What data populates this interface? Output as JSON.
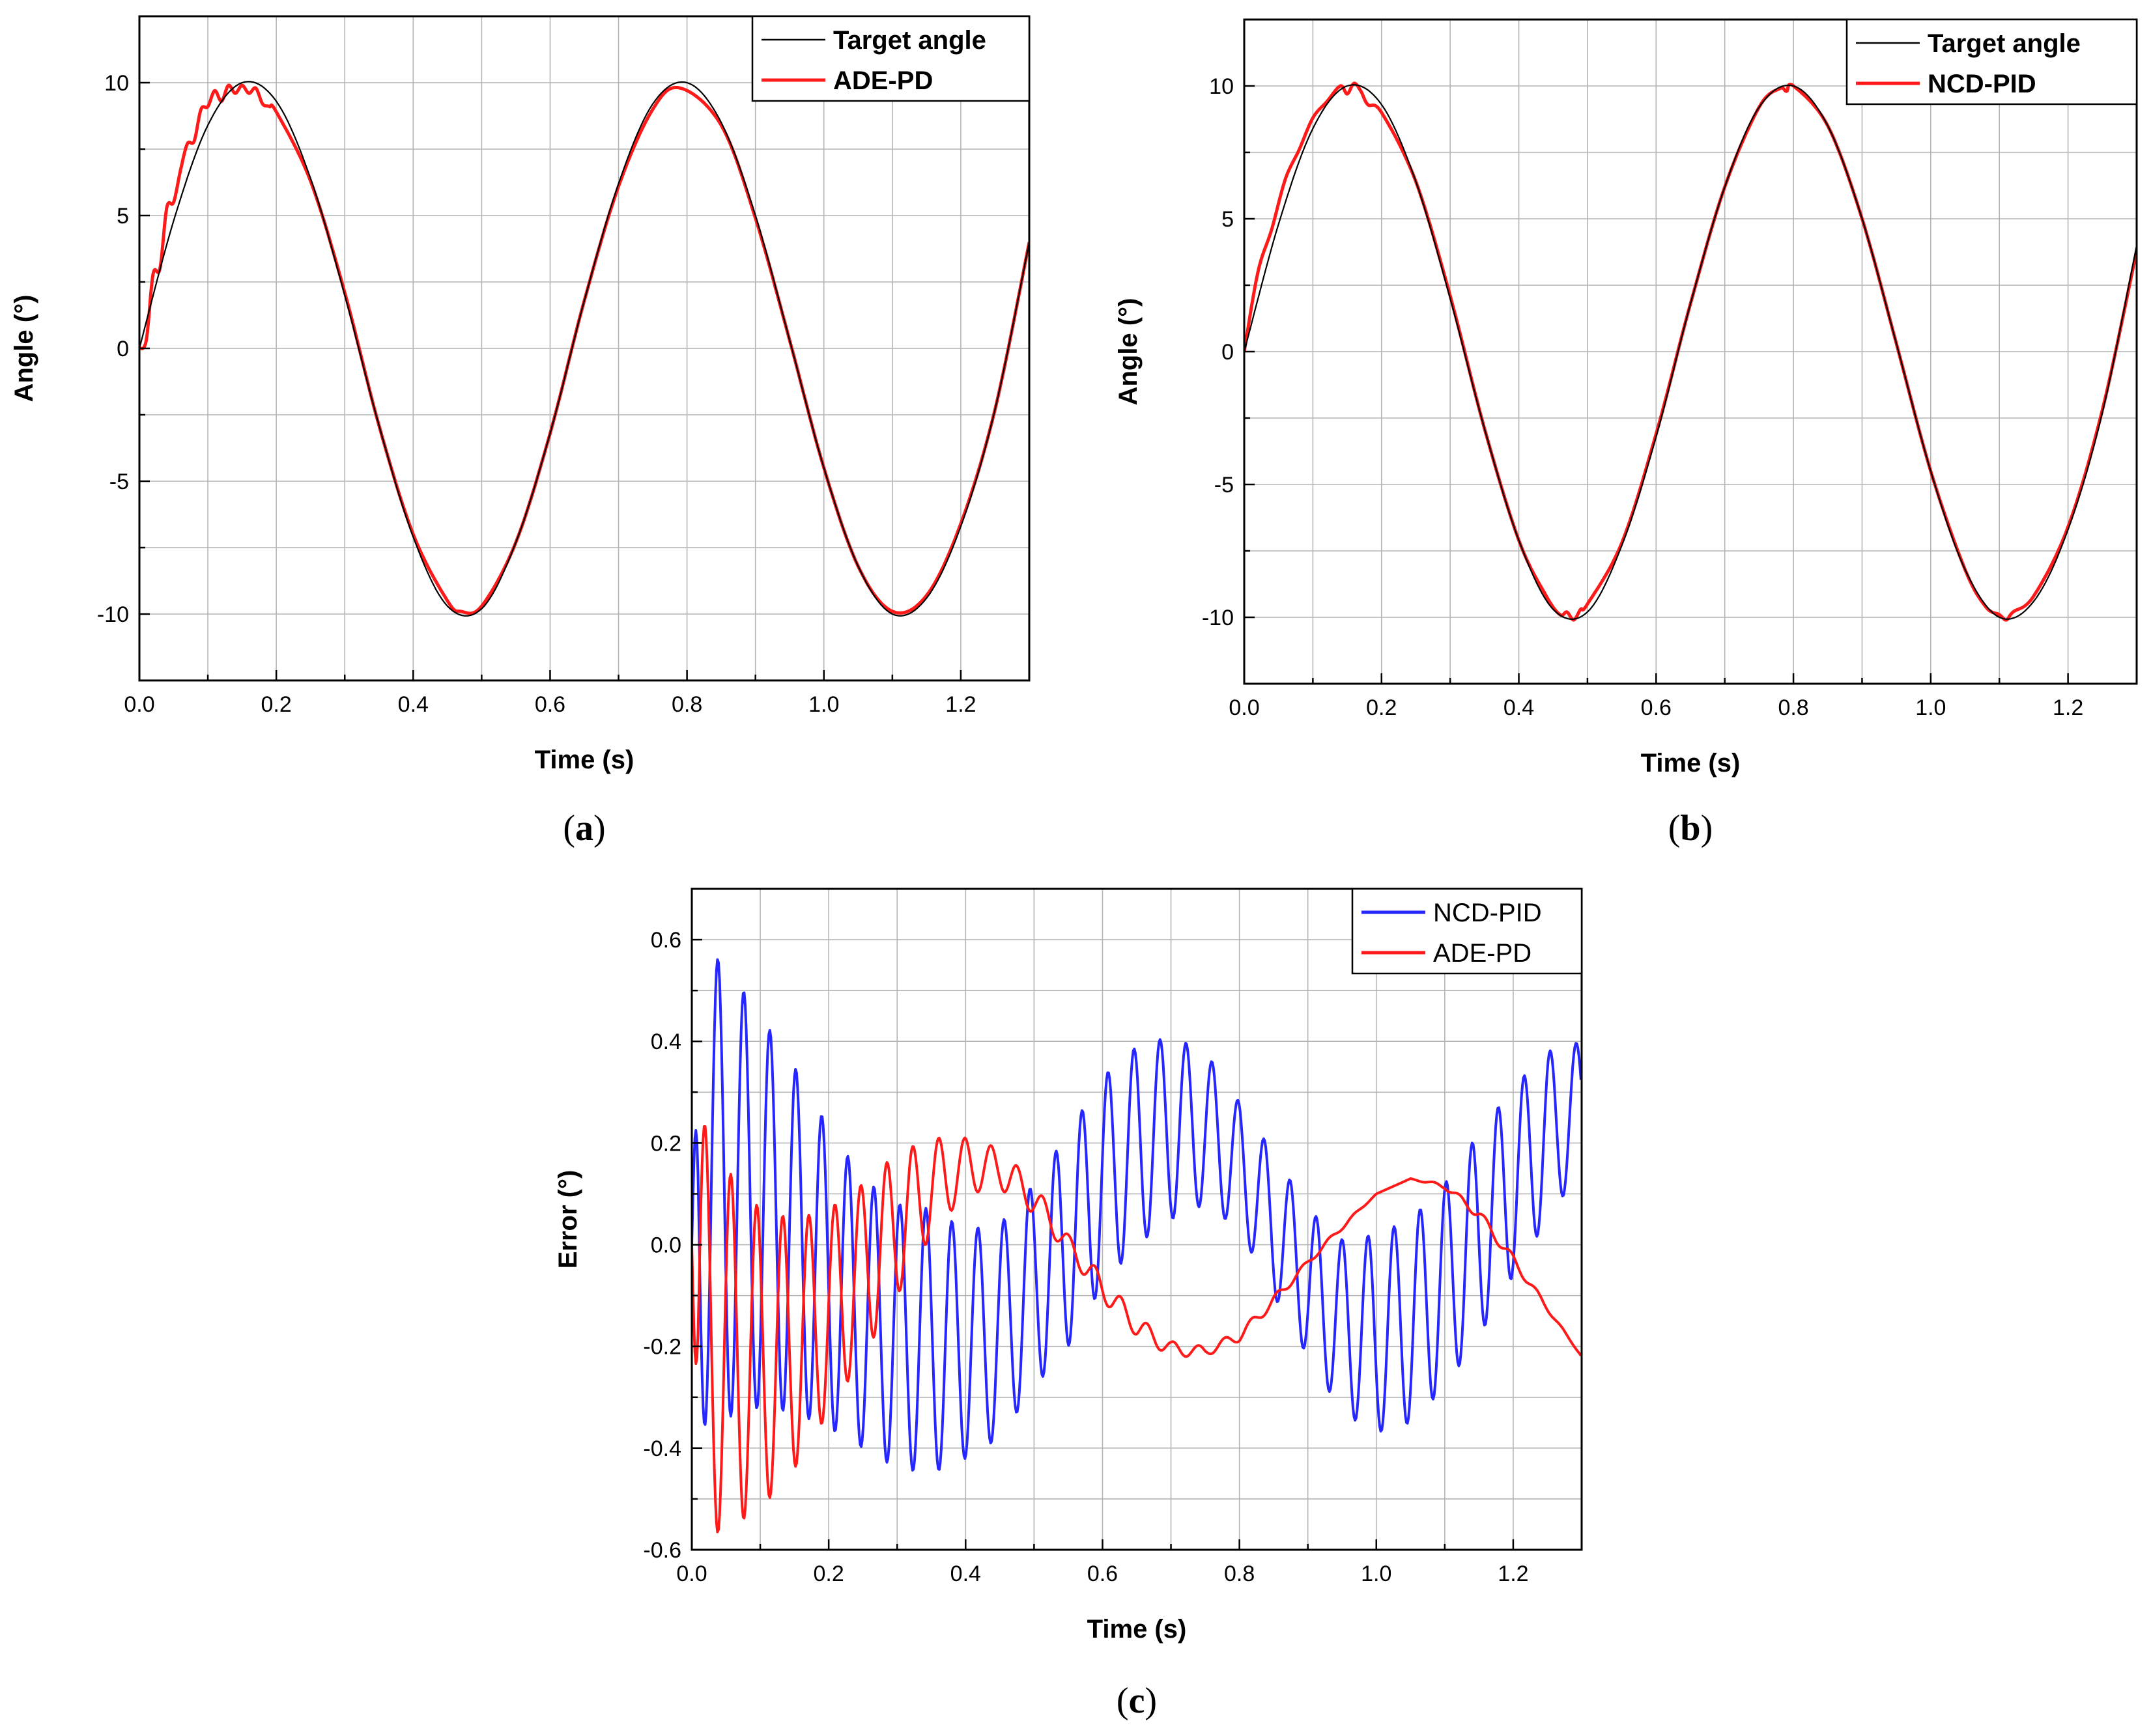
{
  "chart_data": [
    {
      "type": "line",
      "panel_label": "a",
      "xlabel": "Time (s)",
      "ylabel": "Angle (°)",
      "xlim": [
        0.0,
        1.3
      ],
      "ylim": [
        -12.5,
        12.5
      ],
      "xticks": [
        "0.0",
        "0.2",
        "0.4",
        "0.6",
        "0.8",
        "1.0",
        "1.2"
      ],
      "yticks": [
        "-10",
        "-5",
        "0",
        "5",
        "10"
      ],
      "grid": true,
      "legend_position": "top-right",
      "series": [
        {
          "name": "Target angle",
          "color": "#000000",
          "x": [
            0.0,
            0.05,
            0.1,
            0.15,
            0.2,
            0.25,
            0.3,
            0.35,
            0.4,
            0.45,
            0.5,
            0.55,
            0.6,
            0.65,
            0.7,
            0.75,
            0.8,
            0.85,
            0.9,
            0.95,
            1.0,
            1.05,
            1.1,
            1.15,
            1.2,
            1.25,
            1.3
          ],
          "values": [
            0.0,
            4.8,
            8.4,
            10.0,
            9.3,
            6.4,
            2.0,
            -2.9,
            -7.1,
            -9.7,
            -9.8,
            -7.3,
            -3.2,
            1.8,
            6.2,
            9.2,
            10.0,
            8.5,
            5.0,
            0.3,
            -4.5,
            -8.2,
            -10.0,
            -9.4,
            -6.7,
            -2.3,
            4.0
          ]
        },
        {
          "name": "ADE-PD",
          "color": "#ff1a1a",
          "x": [
            0.0,
            0.01,
            0.02,
            0.03,
            0.04,
            0.05,
            0.06,
            0.07,
            0.08,
            0.09,
            0.1,
            0.11,
            0.12,
            0.13,
            0.14,
            0.15,
            0.16,
            0.17,
            0.18,
            0.19,
            0.2,
            0.25,
            0.3,
            0.35,
            0.4,
            0.45,
            0.47,
            0.5,
            0.55,
            0.6,
            0.65,
            0.7,
            0.75,
            0.79,
            0.85,
            0.9,
            0.95,
            1.0,
            1.05,
            1.1,
            1.15,
            1.2,
            1.25,
            1.3
          ],
          "values": [
            0.0,
            0.3,
            2.8,
            3.0,
            5.3,
            5.5,
            6.7,
            7.7,
            7.8,
            9.0,
            9.1,
            9.7,
            9.3,
            9.9,
            9.6,
            9.9,
            9.6,
            9.8,
            9.2,
            9.1,
            8.9,
            6.3,
            2.1,
            -2.9,
            -7.0,
            -9.5,
            -9.9,
            -9.7,
            -7.3,
            -3.2,
            1.8,
            6.1,
            9.0,
            9.8,
            8.4,
            4.9,
            0.3,
            -4.5,
            -8.2,
            -9.9,
            -9.3,
            -6.6,
            -2.3,
            4.0
          ]
        }
      ]
    },
    {
      "type": "line",
      "panel_label": "b",
      "xlabel": "Time (s)",
      "ylabel": "Angle (°)",
      "xlim": [
        0.0,
        1.3
      ],
      "ylim": [
        -12.5,
        12.5
      ],
      "xticks": [
        "0.0",
        "0.2",
        "0.4",
        "0.6",
        "0.8",
        "1.0",
        "1.2"
      ],
      "yticks": [
        "-10",
        "-5",
        "0",
        "5",
        "10"
      ],
      "grid": true,
      "legend_position": "top-right",
      "series": [
        {
          "name": "Target angle",
          "color": "#000000",
          "x": [
            0.0,
            0.05,
            0.1,
            0.15,
            0.2,
            0.25,
            0.3,
            0.35,
            0.4,
            0.45,
            0.5,
            0.55,
            0.6,
            0.65,
            0.7,
            0.75,
            0.8,
            0.85,
            0.9,
            0.95,
            1.0,
            1.05,
            1.1,
            1.15,
            1.2,
            1.25,
            1.3
          ],
          "values": [
            0.0,
            4.8,
            8.4,
            10.0,
            9.3,
            6.4,
            2.0,
            -2.9,
            -7.1,
            -9.7,
            -9.8,
            -7.3,
            -3.2,
            1.8,
            6.2,
            9.2,
            10.0,
            8.5,
            5.0,
            0.3,
            -4.5,
            -8.2,
            -10.0,
            -9.4,
            -6.7,
            -2.3,
            4.0
          ]
        },
        {
          "name": "NCD-PID",
          "color": "#ff1a1a",
          "x": [
            0.0,
            0.02,
            0.04,
            0.06,
            0.08,
            0.1,
            0.12,
            0.14,
            0.15,
            0.16,
            0.17,
            0.18,
            0.2,
            0.25,
            0.3,
            0.35,
            0.4,
            0.44,
            0.46,
            0.47,
            0.48,
            0.49,
            0.5,
            0.55,
            0.6,
            0.65,
            0.7,
            0.75,
            0.78,
            0.79,
            0.8,
            0.85,
            0.9,
            0.95,
            1.0,
            1.05,
            1.08,
            1.1,
            1.11,
            1.12,
            1.15,
            1.2,
            1.25,
            1.3
          ],
          "values": [
            0.0,
            3.0,
            4.6,
            6.5,
            7.6,
            8.8,
            9.4,
            10.0,
            9.7,
            10.1,
            9.8,
            9.3,
            9.0,
            6.4,
            2.1,
            -2.9,
            -7.1,
            -9.2,
            -9.9,
            -9.8,
            -10.1,
            -9.7,
            -9.5,
            -7.2,
            -3.1,
            1.8,
            6.2,
            9.2,
            9.9,
            9.8,
            10.0,
            8.5,
            5.0,
            0.3,
            -4.5,
            -8.2,
            -9.6,
            -9.9,
            -10.1,
            -9.8,
            -9.2,
            -6.6,
            -2.2,
            3.8
          ]
        }
      ]
    },
    {
      "type": "line",
      "panel_label": "c",
      "xlabel": "Time (s)",
      "ylabel": "Error (°)",
      "xlim": [
        0.0,
        1.3
      ],
      "ylim": [
        -0.6,
        0.7
      ],
      "xticks": [
        "0.0",
        "0.2",
        "0.4",
        "0.6",
        "0.8",
        "1.0",
        "1.2"
      ],
      "yticks": [
        "-0.6",
        "-0.4",
        "-0.2",
        "0.0",
        "0.2",
        "0.4",
        "0.6"
      ],
      "grid": true,
      "legend_position": "top-right",
      "series": [
        {
          "name": "NCD-PID",
          "color": "#2626ff",
          "oscillation_period_s": 0.038,
          "x": [
            0.0,
            0.01,
            0.05,
            0.1,
            0.15,
            0.2,
            0.25,
            0.3,
            0.35,
            0.4,
            0.45,
            0.5,
            0.55,
            0.6,
            0.65,
            0.7,
            0.75,
            0.8,
            0.85,
            0.9,
            0.95,
            1.0,
            1.05,
            1.1,
            1.15,
            1.2,
            1.25,
            1.3
          ],
          "upper_envelope": [
            0.0,
            0.59,
            0.55,
            0.45,
            0.35,
            0.23,
            0.13,
            0.08,
            0.07,
            0.03,
            0.04,
            0.12,
            0.22,
            0.33,
            0.39,
            0.41,
            0.38,
            0.28,
            0.18,
            0.07,
            0.01,
            0.02,
            0.05,
            0.12,
            0.22,
            0.31,
            0.38,
            0.4
          ],
          "lower_envelope": [
            0.0,
            -0.36,
            -0.34,
            -0.32,
            -0.33,
            -0.36,
            -0.4,
            -0.44,
            -0.45,
            -0.42,
            -0.38,
            -0.28,
            -0.2,
            -0.08,
            0.0,
            0.05,
            0.08,
            0.03,
            -0.1,
            -0.22,
            -0.33,
            -0.37,
            -0.35,
            -0.28,
            -0.18,
            -0.06,
            0.05,
            0.15
          ]
        },
        {
          "name": "ADE-PD",
          "color": "#ff1a1a",
          "oscillation_period_s": 0.038,
          "x": [
            0.0,
            0.01,
            0.05,
            0.1,
            0.15,
            0.2,
            0.25,
            0.3,
            0.35,
            0.4,
            0.45,
            0.5,
            0.55,
            0.6,
            0.65,
            0.7,
            0.75,
            0.8,
            0.85,
            0.9,
            0.95,
            1.0,
            1.05,
            1.1,
            1.15,
            1.2,
            1.25,
            1.3
          ],
          "upper_envelope": [
            0.0,
            0.26,
            0.15,
            0.07,
            0.05,
            0.07,
            0.12,
            0.18,
            0.21,
            0.21,
            0.19,
            0.12,
            0.02,
            -0.06,
            -0.14,
            -0.19,
            -0.2,
            -0.17,
            -0.1,
            -0.03,
            0.04,
            0.1,
            0.13,
            0.12,
            0.07,
            -0.02,
            -0.12,
            -0.22
          ],
          "lower_envelope": [
            0.0,
            -0.58,
            -0.56,
            -0.52,
            -0.44,
            -0.33,
            -0.22,
            -0.1,
            0.02,
            0.1,
            0.11,
            0.06,
            -0.02,
            -0.11,
            -0.18,
            -0.22,
            -0.22,
            -0.19,
            -0.12,
            -0.04,
            0.03,
            0.1,
            0.13,
            0.11,
            0.05,
            -0.04,
            -0.13,
            -0.22
          ]
        }
      ]
    }
  ]
}
